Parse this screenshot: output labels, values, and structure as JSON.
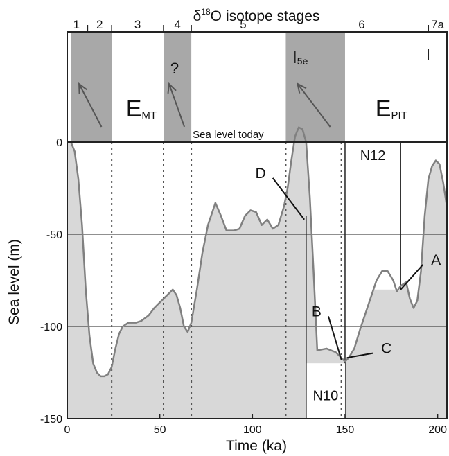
{
  "chart_data": {
    "type": "line",
    "title": "isotope stages",
    "title_symbol": "δ",
    "title_sup": "18",
    "title_element": "O",
    "xlabel": "Time (ka)",
    "ylabel": "Sea level (m)",
    "xlim": [
      0,
      205
    ],
    "ylim": [
      -150,
      0
    ],
    "top_band_ylim": [
      0,
      60
    ],
    "x_ticks": [
      0,
      50,
      100,
      150,
      200
    ],
    "x_tick_labels": [
      "0",
      "50",
      "100",
      "150",
      "200"
    ],
    "y_ticks": [
      0,
      -50,
      -100,
      -150
    ],
    "y_tick_labels": [
      "0",
      "-50",
      "-100",
      "-150"
    ],
    "gridlines_y": [
      -50,
      -100
    ],
    "colors": {
      "line": "#808080",
      "fill": "#d8d8d8",
      "shade": "#a8a8a8",
      "axis": "#222222"
    },
    "stages": {
      "boundaries": [
        0,
        11,
        24,
        52,
        67,
        123,
        195
      ],
      "labels": [
        {
          "label": "1",
          "x": 5
        },
        {
          "label": "2",
          "x": 17.5
        },
        {
          "label": "3",
          "x": 38
        },
        {
          "label": "4",
          "x": 59.5
        },
        {
          "label": "5",
          "x": 95
        },
        {
          "label": "6",
          "x": 159
        },
        {
          "label": "7a",
          "x": 200
        }
      ],
      "substage": {
        "label": "5e",
        "x": 123
      }
    },
    "shaded_periods": [
      {
        "x0": 2,
        "x1": 24,
        "arrow": true
      },
      {
        "x0": 52,
        "x1": 67,
        "arrow": true,
        "label": "?"
      },
      {
        "x0": 118,
        "x1": 150,
        "arrow": true
      }
    ],
    "period_labels": [
      {
        "main": "E",
        "sub": "MT",
        "x": 40
      },
      {
        "main": "E",
        "sub": "PIT",
        "x": 175
      }
    ],
    "sea_level_today_label": "Sea level today",
    "series": [
      {
        "x": [
          0,
          2,
          4,
          6,
          8,
          10,
          12,
          14,
          16,
          18,
          20,
          22,
          24,
          26,
          28,
          30,
          33,
          37,
          40,
          44,
          47,
          50,
          53,
          55,
          57,
          59,
          61,
          63,
          65,
          67,
          70,
          73,
          76,
          80,
          83,
          86,
          90,
          93,
          96,
          99,
          102,
          105,
          108,
          111,
          114,
          117,
          119,
          121,
          123,
          125,
          127,
          129,
          131,
          133,
          135,
          140,
          145,
          148,
          150,
          152,
          155,
          158,
          161,
          164,
          167,
          170,
          173,
          176,
          178,
          180,
          183,
          185,
          187,
          189,
          191,
          193,
          195,
          197,
          199,
          201,
          203,
          205
        ],
        "y": [
          0,
          0,
          -5,
          -20,
          -45,
          -80,
          -105,
          -120,
          -125,
          -127,
          -127,
          -126,
          -122,
          -112,
          -104,
          -100,
          -98,
          -98,
          -97,
          -94,
          -90,
          -87,
          -84,
          -82,
          -80,
          -83,
          -90,
          -100,
          -103,
          -98,
          -80,
          -60,
          -45,
          -33,
          -40,
          -48,
          -48,
          -47,
          -40,
          -37,
          -38,
          -45,
          -42,
          -47,
          -45,
          -35,
          -25,
          -10,
          3,
          8,
          7,
          0,
          -30,
          -70,
          -113,
          -112,
          -114,
          -117,
          -119,
          -117,
          -112,
          -102,
          -93,
          -84,
          -75,
          -70,
          -70,
          -75,
          -81,
          -78,
          -76,
          -85,
          -90,
          -86,
          -70,
          -40,
          -20,
          -13,
          -10,
          -12,
          -22,
          -35
        ]
      }
    ],
    "region_lines": [
      {
        "label": "N12",
        "x0": 150,
        "x1": 180,
        "y_top": 0,
        "y_bottom": -80
      },
      {
        "label": "N10",
        "x0": 129,
        "x1": 150,
        "y_top": -40,
        "y_bottom": -150
      }
    ],
    "dotted_lines_x": [
      24,
      52,
      67,
      118,
      148
    ],
    "annotations": [
      {
        "label": "A",
        "point_x": 180,
        "point_y": -80,
        "text_x": 195,
        "text_y": -65
      },
      {
        "label": "B",
        "point_x": 148,
        "point_y": -118,
        "text_x": 138,
        "text_y": -93
      },
      {
        "label": "C",
        "point_x": 151,
        "point_y": -117,
        "text_x": 168,
        "text_y": -113
      },
      {
        "label": "D",
        "point_x": 128,
        "point_y": -42,
        "text_x": 108,
        "text_y": -18
      }
    ]
  }
}
